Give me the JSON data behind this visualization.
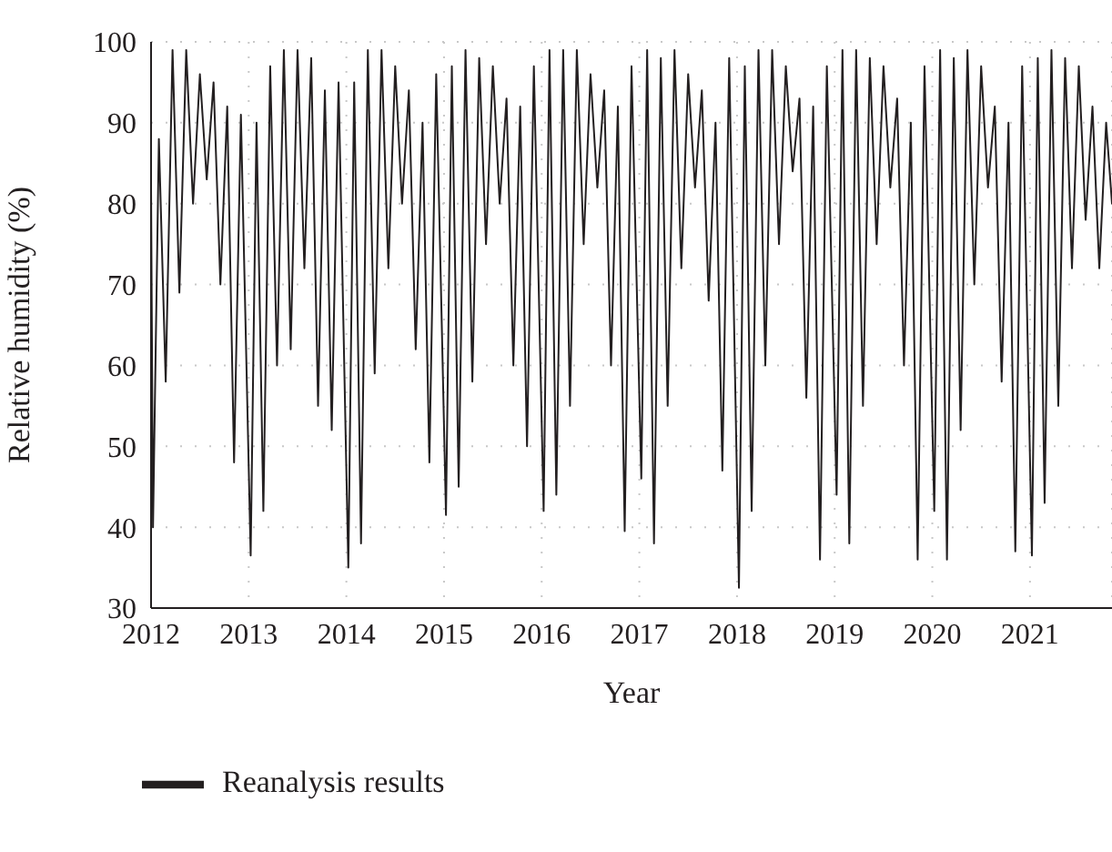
{
  "chart_data": {
    "type": "line",
    "xlabel": "Year",
    "ylabel": "Relative humidity (%)",
    "xlim": [
      2012,
      2021.84
    ],
    "xticks": [
      2012,
      2013,
      2014,
      2015,
      2016,
      2017,
      2018,
      2019,
      2020,
      2021
    ],
    "ylim": [
      30,
      100
    ],
    "yticks": [
      30,
      40,
      50,
      60,
      70,
      80,
      90,
      100
    ],
    "grid": true,
    "legend": "bottom left",
    "marker": "none",
    "line_style": "solid",
    "x": [
      2012,
      2012.02,
      2012.08,
      2012.15,
      2012.22,
      2012.29,
      2012.36,
      2012.43,
      2012.5,
      2012.57,
      2012.64,
      2012.71,
      2012.78,
      2012.85,
      2012.92,
      2013.02,
      2013.08,
      2013.15,
      2013.22,
      2013.29,
      2013.36,
      2013.43,
      2013.5,
      2013.57,
      2013.64,
      2013.71,
      2013.78,
      2013.85,
      2013.92,
      2014.02,
      2014.08,
      2014.15,
      2014.22,
      2014.29,
      2014.36,
      2014.43,
      2014.5,
      2014.57,
      2014.64,
      2014.71,
      2014.78,
      2014.85,
      2014.92,
      2015.02,
      2015.08,
      2015.15,
      2015.22,
      2015.29,
      2015.36,
      2015.43,
      2015.5,
      2015.57,
      2015.64,
      2015.71,
      2015.78,
      2015.85,
      2015.92,
      2016.02,
      2016.08,
      2016.15,
      2016.22,
      2016.29,
      2016.36,
      2016.43,
      2016.5,
      2016.57,
      2016.64,
      2016.71,
      2016.78,
      2016.85,
      2016.92,
      2017.02,
      2017.08,
      2017.15,
      2017.22,
      2017.29,
      2017.36,
      2017.43,
      2017.5,
      2017.57,
      2017.64,
      2017.71,
      2017.78,
      2017.85,
      2017.92,
      2018.02,
      2018.08,
      2018.15,
      2018.22,
      2018.29,
      2018.36,
      2018.43,
      2018.5,
      2018.57,
      2018.64,
      2018.71,
      2018.78,
      2018.85,
      2018.92,
      2019.02,
      2019.08,
      2019.15,
      2019.22,
      2019.29,
      2019.36,
      2019.43,
      2019.5,
      2019.57,
      2019.64,
      2019.71,
      2019.78,
      2019.85,
      2019.92,
      2020.02,
      2020.08,
      2020.15,
      2020.22,
      2020.29,
      2020.36,
      2020.43,
      2020.5,
      2020.57,
      2020.64,
      2020.71,
      2020.78,
      2020.85,
      2020.92,
      2021.02,
      2021.08,
      2021.15,
      2021.22,
      2021.29,
      2021.36,
      2021.43,
      2021.5,
      2021.57,
      2021.64,
      2021.71,
      2021.78,
      2021.84
    ],
    "series": [
      {
        "name": "Reanalysis results",
        "color": "#231f20",
        "values": [
          82,
          40,
          88,
          58,
          99,
          69,
          99,
          80,
          96,
          83,
          95,
          70,
          92,
          48,
          91,
          36.5,
          90,
          42,
          97,
          60,
          99,
          62,
          99,
          72,
          98,
          55,
          94,
          52,
          95,
          35,
          95,
          38,
          99,
          59,
          99,
          72,
          97,
          80,
          94,
          62,
          90,
          48,
          96,
          41.5,
          97,
          45,
          99,
          58,
          98,
          75,
          97,
          80,
          93,
          60,
          92,
          50,
          97,
          42,
          99,
          44,
          99,
          55,
          99,
          75,
          96,
          82,
          94,
          60,
          92,
          39.5,
          97,
          46,
          99,
          38,
          98,
          55,
          99,
          72,
          96,
          82,
          94,
          68,
          90,
          47,
          98,
          32.5,
          97,
          42,
          99,
          60,
          99,
          75,
          97,
          84,
          93,
          56,
          92,
          36,
          97,
          44,
          99,
          38,
          99,
          55,
          98,
          75,
          97,
          82,
          93,
          60,
          90,
          36,
          97,
          42,
          99,
          36,
          98,
          52,
          99,
          70,
          97,
          82,
          92,
          58,
          90,
          37,
          97,
          36.5,
          98,
          43,
          99,
          55,
          98,
          72,
          97,
          78,
          92,
          72,
          90,
          80
        ]
      }
    ]
  }
}
